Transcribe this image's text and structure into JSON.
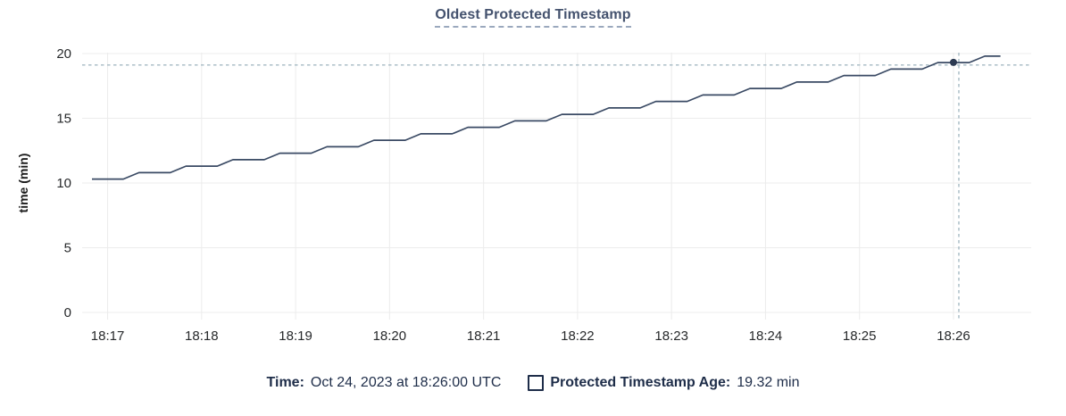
{
  "title": "Oldest Protected Timestamp",
  "legend": {
    "time_label": "Time:",
    "time_value": "Oct 24, 2023 at 18:26:00 UTC",
    "series_label": "Protected Timestamp Age:",
    "series_value": "19.32 min",
    "series_checkbox_icon": "checkbox-unfilled"
  },
  "colors": {
    "line": "#3a4a64",
    "dot": "#2c3a52",
    "crosshair": "#a6bac4",
    "grid": "#ececec",
    "axis_text": "#26282a",
    "ylabel_text": "#1a1a1a",
    "title_text": "#44526e",
    "legend_text": "#1e2d49"
  },
  "chart_data": {
    "type": "line",
    "title": "Oldest Protected Timestamp",
    "xlabel": "",
    "ylabel": "time (min)",
    "ylim": [
      0,
      20
    ],
    "yticks": [
      0,
      5,
      10,
      15,
      20
    ],
    "x_tick_labels": [
      "18:17",
      "18:18",
      "18:19",
      "18:20",
      "18:21",
      "18:22",
      "18:23",
      "18:24",
      "18:25",
      "18:26"
    ],
    "x_tick_offsets_s": [
      10,
      70,
      130,
      190,
      250,
      310,
      370,
      430,
      490,
      550
    ],
    "x_start_time": "18:16:50",
    "grid": true,
    "legend_position": "bottom",
    "series": [
      {
        "name": "Protected Timestamp Age",
        "unit": "min",
        "points": [
          [
            0,
            10.3
          ],
          [
            20,
            10.3
          ],
          [
            30,
            10.8
          ],
          [
            50,
            10.8
          ],
          [
            60,
            11.3
          ],
          [
            80,
            11.3
          ],
          [
            90,
            11.8
          ],
          [
            110,
            11.8
          ],
          [
            120,
            12.3
          ],
          [
            140,
            12.3
          ],
          [
            150,
            12.8
          ],
          [
            170,
            12.8
          ],
          [
            180,
            13.3
          ],
          [
            200,
            13.3
          ],
          [
            210,
            13.8
          ],
          [
            230,
            13.8
          ],
          [
            240,
            14.3
          ],
          [
            260,
            14.3
          ],
          [
            270,
            14.8
          ],
          [
            290,
            14.8
          ],
          [
            300,
            15.3
          ],
          [
            320,
            15.3
          ],
          [
            330,
            15.8
          ],
          [
            350,
            15.8
          ],
          [
            360,
            16.3
          ],
          [
            380,
            16.3
          ],
          [
            390,
            16.8
          ],
          [
            410,
            16.8
          ],
          [
            420,
            17.3
          ],
          [
            440,
            17.3
          ],
          [
            450,
            17.8
          ],
          [
            470,
            17.8
          ],
          [
            480,
            18.3
          ],
          [
            500,
            18.3
          ],
          [
            510,
            18.8
          ],
          [
            530,
            18.8
          ],
          [
            540,
            19.3
          ],
          [
            560,
            19.3
          ],
          [
            570,
            19.8
          ],
          [
            580,
            19.8
          ]
        ]
      }
    ],
    "hover_point": {
      "t_offset_s": 550,
      "time": "18:26:00",
      "value_min": 19.32
    }
  }
}
